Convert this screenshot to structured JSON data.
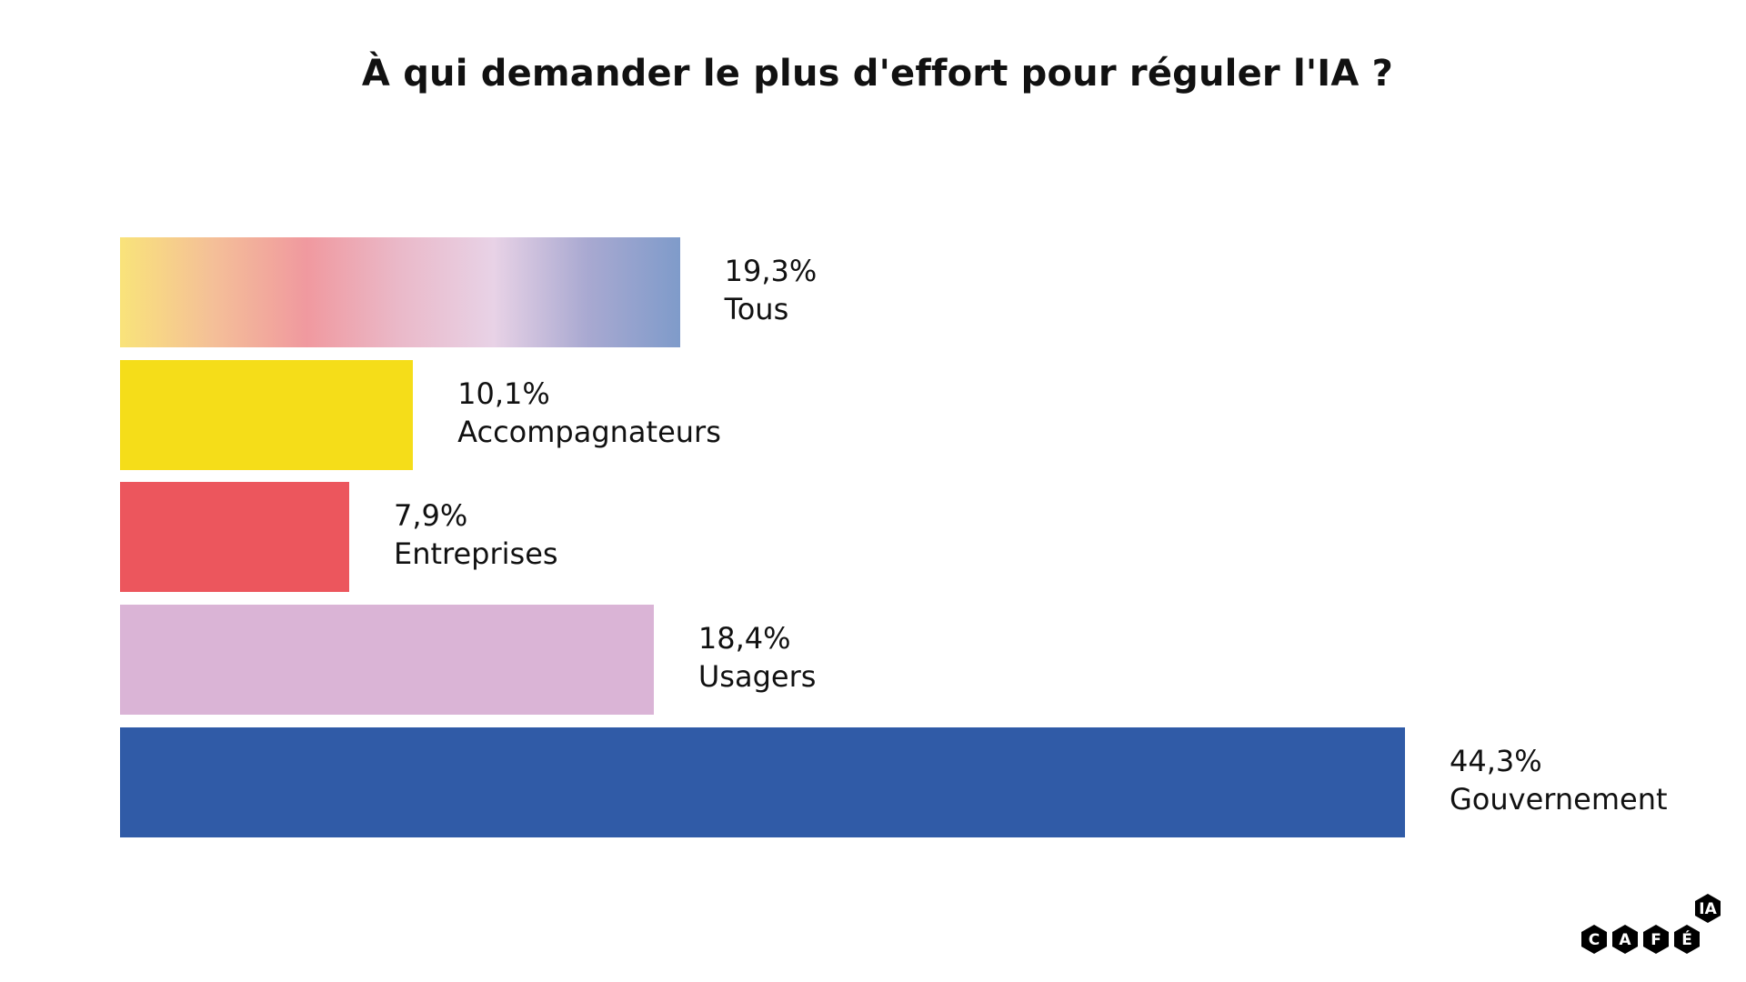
{
  "chart_data": {
    "type": "bar",
    "orientation": "horizontal",
    "title": "À qui demander le plus d'effort pour réguler l'IA ?",
    "categories": [
      "Tous",
      "Accompagnateurs",
      "Entreprises",
      "Usagers",
      "Gouvernement"
    ],
    "values": [
      19.3,
      10.1,
      7.9,
      18.4,
      44.3
    ],
    "value_labels": [
      "19,3%",
      "10,1%",
      "7,9%",
      "18,4%",
      "44,3%"
    ],
    "colors": [
      "gradient",
      "#f5dd19",
      "#ec565d",
      "#dab4d6",
      "#305ba7"
    ],
    "gradient_stops": [
      "#f9e37a",
      "#f4bf98",
      "#f0999f",
      "#eab9c9",
      "#e8d2e6",
      "#a9a9d1",
      "#7f9bca"
    ],
    "xlabel": "",
    "ylabel": "",
    "xlim": [
      0,
      44.3
    ],
    "grid": false,
    "legend": "none"
  },
  "logo": {
    "text": "CAFÉ IA",
    "letters": [
      "C",
      "A",
      "F",
      "É"
    ],
    "badge": "IA"
  }
}
